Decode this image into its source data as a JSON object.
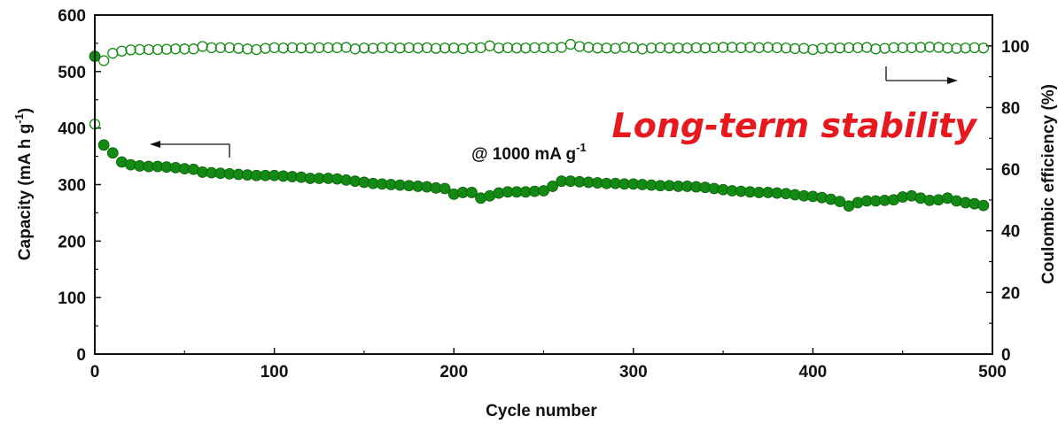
{
  "chart_data": {
    "type": "scatter",
    "title": "Long-term stability",
    "annotation": "@ 1000 mA g",
    "annotation_sup": "-1",
    "xlabel": "Cycle number",
    "ylabel_left": "Capacity (mA h g",
    "ylabel_left_sup": "-1",
    "ylabel_left_close": ")",
    "ylabel_right": "Coulombic efficiency (%)",
    "xlim": [
      0,
      500
    ],
    "ylim_left": [
      0,
      600
    ],
    "ylim_right": [
      0,
      110
    ],
    "x_ticks": [
      0,
      100,
      200,
      300,
      400,
      500
    ],
    "y_left_ticks": [
      0,
      100,
      200,
      300,
      400,
      500,
      600
    ],
    "y_right_ticks": [
      0,
      20,
      40,
      60,
      80,
      100
    ],
    "colors": {
      "series": "#138a13",
      "title": "#e8191e",
      "axis": "#111111"
    },
    "series": [
      {
        "axis": "left",
        "marker": "filled-circle",
        "x": [
          0,
          5,
          10,
          15,
          20,
          25,
          30,
          35,
          40,
          45,
          50,
          55,
          60,
          65,
          70,
          75,
          80,
          85,
          90,
          95,
          100,
          105,
          110,
          115,
          120,
          125,
          130,
          135,
          140,
          145,
          150,
          155,
          160,
          165,
          170,
          175,
          180,
          185,
          190,
          195,
          200,
          205,
          210,
          215,
          220,
          225,
          230,
          235,
          240,
          245,
          250,
          255,
          260,
          265,
          270,
          275,
          280,
          285,
          290,
          295,
          300,
          305,
          310,
          315,
          320,
          325,
          330,
          335,
          340,
          345,
          350,
          355,
          360,
          365,
          370,
          375,
          380,
          385,
          390,
          395,
          400,
          405,
          410,
          415,
          420,
          425,
          430,
          435,
          440,
          445,
          450,
          455,
          460,
          465,
          470,
          475,
          480,
          485,
          490,
          495
        ],
        "y": [
          527,
          370,
          356,
          340,
          335,
          333,
          332,
          332,
          331,
          330,
          328,
          327,
          322,
          321,
          320,
          319,
          318,
          317,
          316,
          316,
          316,
          315,
          314,
          313,
          311,
          311,
          311,
          310,
          308,
          306,
          304,
          302,
          301,
          300,
          299,
          298,
          297,
          296,
          294,
          293,
          283,
          286,
          286,
          276,
          280,
          285,
          287,
          287,
          287,
          288,
          289,
          297,
          306,
          306,
          305,
          304,
          303,
          302,
          302,
          301,
          301,
          300,
          299,
          298,
          298,
          297,
          297,
          296,
          295,
          293,
          291,
          289,
          288,
          287,
          286,
          286,
          285,
          284,
          282,
          280,
          279,
          277,
          274,
          270,
          262,
          268,
          271,
          271,
          272,
          273,
          278,
          280,
          276,
          272,
          273,
          276,
          271,
          268,
          266,
          263
        ]
      },
      {
        "axis": "right",
        "marker": "open-circle",
        "x": [
          0,
          5,
          10,
          15,
          20,
          25,
          30,
          35,
          40,
          45,
          50,
          55,
          60,
          65,
          70,
          75,
          80,
          85,
          90,
          95,
          100,
          105,
          110,
          115,
          120,
          125,
          130,
          135,
          140,
          145,
          150,
          155,
          160,
          165,
          170,
          175,
          180,
          185,
          190,
          195,
          200,
          205,
          210,
          215,
          220,
          225,
          230,
          235,
          240,
          245,
          250,
          255,
          260,
          265,
          270,
          275,
          280,
          285,
          290,
          295,
          300,
          305,
          310,
          315,
          320,
          325,
          330,
          335,
          340,
          345,
          350,
          355,
          360,
          365,
          370,
          375,
          380,
          385,
          390,
          395,
          400,
          405,
          410,
          415,
          420,
          425,
          430,
          435,
          440,
          445,
          450,
          455,
          460,
          465,
          470,
          475,
          480,
          485,
          490,
          495
        ],
        "y": [
          74.6,
          95.2,
          97.6,
          98.3,
          98.7,
          98.8,
          98.8,
          98.8,
          98.9,
          99.0,
          99.0,
          99.0,
          99.8,
          99.4,
          99.4,
          99.4,
          99.2,
          99.0,
          98.8,
          99.2,
          99.4,
          99.3,
          99.4,
          99.3,
          99.3,
          99.4,
          99.4,
          99.4,
          99.5,
          99.0,
          99.3,
          99.2,
          99.4,
          99.4,
          99.3,
          99.4,
          99.3,
          99.4,
          99.2,
          99.3,
          99.3,
          99.1,
          99.4,
          99.4,
          100.0,
          99.3,
          99.4,
          99.3,
          99.3,
          99.4,
          99.4,
          99.4,
          99.5,
          100.5,
          99.8,
          99.5,
          99.3,
          99.3,
          99.2,
          99.5,
          99.4,
          99.0,
          99.3,
          99.4,
          99.3,
          99.3,
          99.3,
          99.4,
          99.3,
          99.4,
          99.5,
          99.5,
          99.4,
          99.5,
          99.4,
          99.5,
          99.4,
          99.3,
          99.1,
          99.2,
          98.8,
          99.2,
          99.3,
          99.3,
          99.4,
          99.4,
          99.5,
          99.0,
          99.2,
          99.4,
          99.4,
          99.4,
          99.5,
          99.6,
          99.5,
          99.3,
          99.2,
          99.3,
          99.4,
          99.3
        ]
      }
    ]
  }
}
